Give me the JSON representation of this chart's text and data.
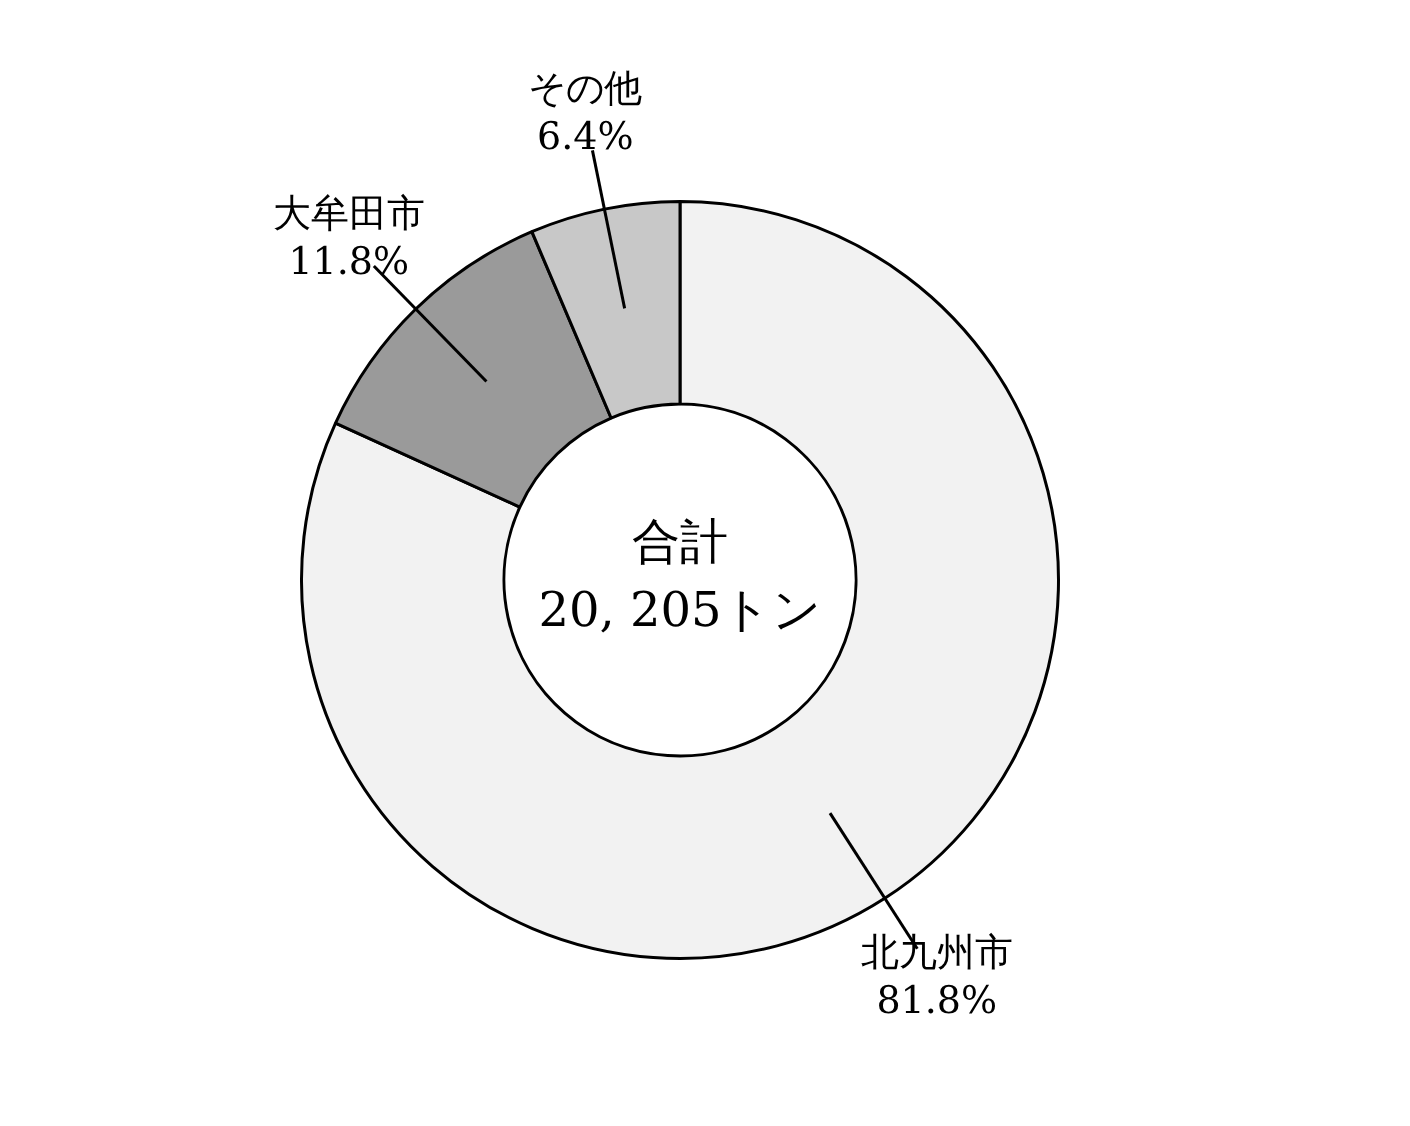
{
  "chart_data": {
    "type": "donut",
    "categories": [
      "北九州市",
      "大牟田市",
      "その他"
    ],
    "values": [
      81.8,
      11.8,
      6.4
    ],
    "value_labels": [
      "81.8%",
      "11.8%",
      "6.4%"
    ],
    "colors": [
      "#f2f2f2",
      "#9a9a9a",
      "#c8c8c8"
    ],
    "annotations": [
      "合計",
      "20, 205トン"
    ],
    "legend": false
  }
}
